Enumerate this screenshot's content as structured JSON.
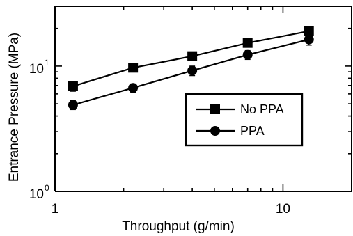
{
  "chart_data": {
    "type": "line",
    "x_scale": "log",
    "y_scale": "log",
    "xlim": [
      1,
      20
    ],
    "ylim": [
      1,
      30
    ],
    "xlabel": "Throughput (g/min)",
    "ylabel": "Entrance Pressure (MPa)",
    "x_ticks": [
      {
        "base": "1",
        "exp": ""
      },
      {
        "base": "10",
        "exp": ""
      }
    ],
    "y_ticks": [
      {
        "base": "10",
        "exp": "0"
      },
      {
        "base": "10",
        "exp": "1"
      }
    ],
    "grid": false,
    "legend_position": "center-right",
    "series": [
      {
        "name": "No PPA",
        "marker": "square",
        "x": [
          1.2,
          2.2,
          4.0,
          7.0,
          13.0
        ],
        "y": [
          6.9,
          9.7,
          12.0,
          15.3,
          19.0
        ],
        "err": [
          0.6,
          0.6,
          0.8,
          0.8,
          1.2
        ]
      },
      {
        "name": "PPA",
        "marker": "circle",
        "x": [
          1.2,
          2.2,
          4.0,
          7.0,
          13.0
        ],
        "y": [
          4.9,
          6.7,
          9.2,
          12.3,
          16.3
        ],
        "err": [
          0.4,
          0.5,
          0.8,
          1.0,
          1.6
        ]
      }
    ]
  }
}
